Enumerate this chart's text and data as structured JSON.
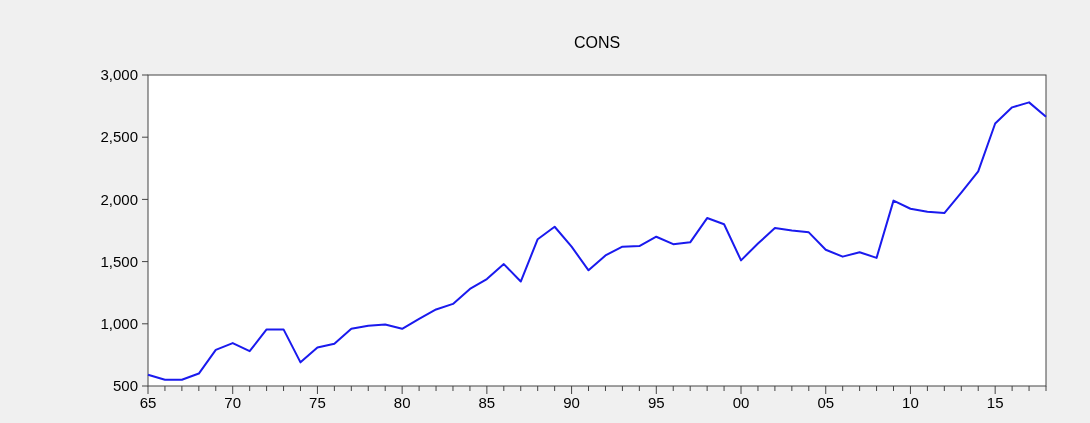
{
  "chart_data": {
    "type": "line",
    "title": "CONS",
    "x": [
      1965,
      1966,
      1967,
      1968,
      1969,
      1970,
      1971,
      1972,
      1973,
      1974,
      1975,
      1976,
      1977,
      1978,
      1979,
      1980,
      1981,
      1982,
      1983,
      1984,
      1985,
      1986,
      1987,
      1988,
      1989,
      1990,
      1991,
      1992,
      1993,
      1994,
      1995,
      1996,
      1997,
      1998,
      1999,
      2000,
      2001,
      2002,
      2003,
      2004,
      2005,
      2006,
      2007,
      2008,
      2009,
      2010,
      2011,
      2012,
      2013,
      2014,
      2015,
      2016,
      2017,
      2018
    ],
    "series": [
      {
        "color": "#1a1aee",
        "values": [
          590,
          550,
          550,
          600,
          790,
          845,
          780,
          955,
          955,
          690,
          810,
          840,
          960,
          985,
          995,
          960,
          1040,
          1115,
          1160,
          1280,
          1360,
          1480,
          1340,
          1680,
          1780,
          1620,
          1430,
          1550,
          1620,
          1625,
          1700,
          1640,
          1655,
          1850,
          1800,
          1510,
          1645,
          1770,
          1750,
          1735,
          1595,
          1540,
          1575,
          1530,
          1990,
          1925,
          1900,
          1890,
          2055,
          2225,
          2610,
          2740,
          2780,
          2665
        ]
      }
    ],
    "xlim": [
      1965,
      2018
    ],
    "xticks": [
      {
        "value": 1965,
        "label": "65"
      },
      {
        "value": 1966,
        "label": null
      },
      {
        "value": 1967,
        "label": null
      },
      {
        "value": 1968,
        "label": null
      },
      {
        "value": 1969,
        "label": null
      },
      {
        "value": 1970,
        "label": "70"
      },
      {
        "value": 1971,
        "label": null
      },
      {
        "value": 1972,
        "label": null
      },
      {
        "value": 1973,
        "label": null
      },
      {
        "value": 1974,
        "label": null
      },
      {
        "value": 1975,
        "label": "75"
      },
      {
        "value": 1976,
        "label": null
      },
      {
        "value": 1977,
        "label": null
      },
      {
        "value": 1978,
        "label": null
      },
      {
        "value": 1979,
        "label": null
      },
      {
        "value": 1980,
        "label": "80"
      },
      {
        "value": 1981,
        "label": null
      },
      {
        "value": 1982,
        "label": null
      },
      {
        "value": 1983,
        "label": null
      },
      {
        "value": 1984,
        "label": null
      },
      {
        "value": 1985,
        "label": "85"
      },
      {
        "value": 1986,
        "label": null
      },
      {
        "value": 1987,
        "label": null
      },
      {
        "value": 1988,
        "label": null
      },
      {
        "value": 1989,
        "label": null
      },
      {
        "value": 1990,
        "label": "90"
      },
      {
        "value": 1991,
        "label": null
      },
      {
        "value": 1992,
        "label": null
      },
      {
        "value": 1993,
        "label": null
      },
      {
        "value": 1994,
        "label": null
      },
      {
        "value": 1995,
        "label": "95"
      },
      {
        "value": 1996,
        "label": null
      },
      {
        "value": 1997,
        "label": null
      },
      {
        "value": 1998,
        "label": null
      },
      {
        "value": 1999,
        "label": null
      },
      {
        "value": 2000,
        "label": "00"
      },
      {
        "value": 2001,
        "label": null
      },
      {
        "value": 2002,
        "label": null
      },
      {
        "value": 2003,
        "label": null
      },
      {
        "value": 2004,
        "label": null
      },
      {
        "value": 2005,
        "label": "05"
      },
      {
        "value": 2006,
        "label": null
      },
      {
        "value": 2007,
        "label": null
      },
      {
        "value": 2008,
        "label": null
      },
      {
        "value": 2009,
        "label": null
      },
      {
        "value": 2010,
        "label": "10"
      },
      {
        "value": 2011,
        "label": null
      },
      {
        "value": 2012,
        "label": null
      },
      {
        "value": 2013,
        "label": null
      },
      {
        "value": 2014,
        "label": null
      },
      {
        "value": 2015,
        "label": "15"
      },
      {
        "value": 2016,
        "label": null
      },
      {
        "value": 2017,
        "label": null
      },
      {
        "value": 2018,
        "label": null
      }
    ],
    "ylim": [
      500,
      3000
    ],
    "yticks": [
      {
        "value": 500,
        "label": "500"
      },
      {
        "value": 1000,
        "label": "1,000"
      },
      {
        "value": 1500,
        "label": "1,500"
      },
      {
        "value": 2000,
        "label": "2,000"
      },
      {
        "value": 2500,
        "label": "2,500"
      },
      {
        "value": 3000,
        "label": "3,000"
      }
    ]
  }
}
